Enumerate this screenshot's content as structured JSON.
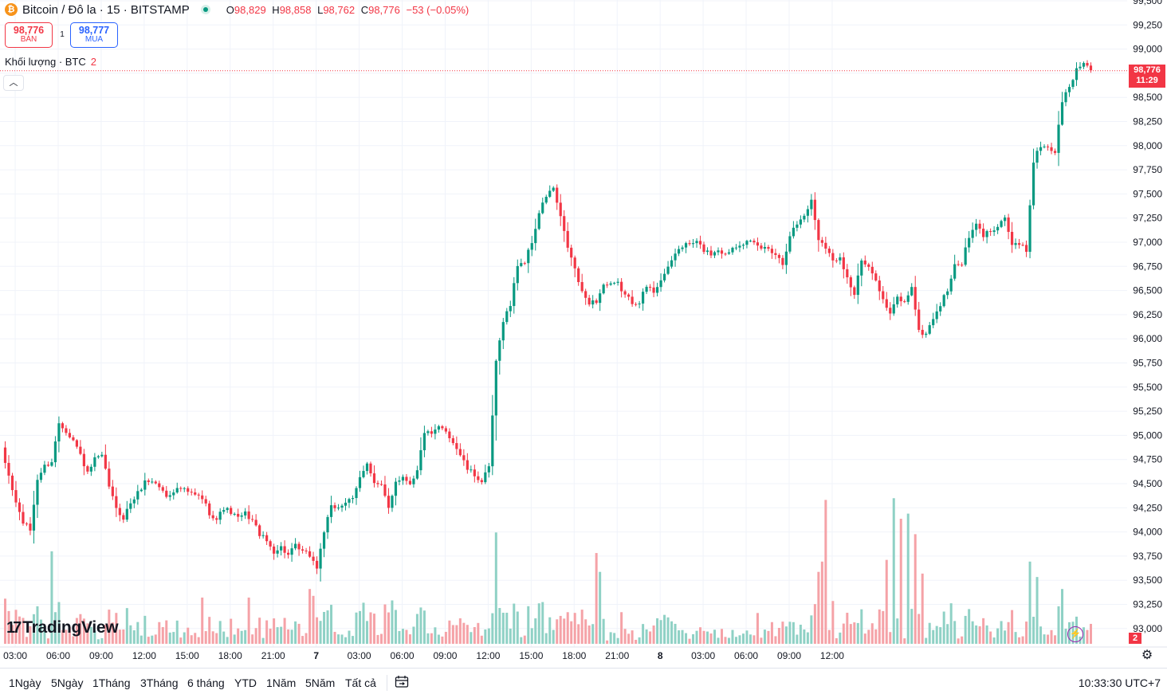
{
  "header": {
    "symbol_title": "Bitcoin / Đô la · 15 · BITSTAMP",
    "coin_icon": "bitcoin-icon",
    "ohlc": [
      {
        "key": "O",
        "value": "98,829"
      },
      {
        "key": "H",
        "value": "98,858"
      },
      {
        "key": "L",
        "value": "98,762"
      },
      {
        "key": "C",
        "value": "98,776"
      }
    ],
    "change": "−53 (−0.05%)"
  },
  "trade": {
    "sell_price": "98,776",
    "sell_label": "BÁN",
    "buy_price": "98,777",
    "buy_label": "MUA",
    "spread": "1"
  },
  "volume_legend": {
    "label": "Khối lượng · BTC",
    "value": "2"
  },
  "price_tag": {
    "price": "98,776",
    "countdown": "11:29"
  },
  "volume_tag": "2",
  "watermark": "TradingView",
  "colors": {
    "up": "#089981",
    "down": "#f23645",
    "vol_up": "#8fd1c5",
    "vol_down": "#f5a2a7",
    "grid": "#f0f3fa"
  },
  "chart_data": {
    "type": "candlestick",
    "symbol": "Bitcoin / Đô la",
    "interval": "15",
    "exchange": "BITSTAMP",
    "y_ticks": [
      93000,
      93250,
      93500,
      93750,
      94000,
      94250,
      94500,
      94750,
      95000,
      95250,
      95500,
      95750,
      96000,
      96250,
      96500,
      96750,
      97000,
      97250,
      97500,
      97750,
      98000,
      98250,
      98500,
      98750,
      99000,
      99250,
      99500
    ],
    "x_ticks": [
      "03:00",
      "06:00",
      "09:00",
      "12:00",
      "15:00",
      "18:00",
      "21:00",
      "7",
      "03:00",
      "06:00",
      "09:00",
      "12:00",
      "15:00",
      "18:00",
      "21:00",
      "8",
      "03:00",
      "06:00",
      "09:00",
      "12:00"
    ],
    "ylim": [
      92850,
      99550
    ],
    "grid": true,
    "last_price": 98776,
    "anchors": [
      [
        0,
        94850
      ],
      [
        2,
        94580
      ],
      [
        4,
        94300
      ],
      [
        6,
        94100
      ],
      [
        8,
        94020
      ],
      [
        10,
        94550
      ],
      [
        12,
        94680
      ],
      [
        14,
        94730
      ],
      [
        16,
        95130
      ],
      [
        18,
        95050
      ],
      [
        20,
        94950
      ],
      [
        22,
        94800
      ],
      [
        24,
        94600
      ],
      [
        26,
        94750
      ],
      [
        28,
        94780
      ],
      [
        30,
        94480
      ],
      [
        32,
        94230
      ],
      [
        34,
        94150
      ],
      [
        36,
        94300
      ],
      [
        38,
        94400
      ],
      [
        40,
        94520
      ],
      [
        42,
        94530
      ],
      [
        44,
        94470
      ],
      [
        46,
        94370
      ],
      [
        48,
        94430
      ],
      [
        50,
        94450
      ],
      [
        52,
        94410
      ],
      [
        54,
        94380
      ],
      [
        56,
        94350
      ],
      [
        58,
        94200
      ],
      [
        60,
        94130
      ],
      [
        62,
        94250
      ],
      [
        64,
        94200
      ],
      [
        66,
        94140
      ],
      [
        68,
        94190
      ],
      [
        70,
        94120
      ],
      [
        72,
        93980
      ],
      [
        74,
        93900
      ],
      [
        76,
        93800
      ],
      [
        78,
        93840
      ],
      [
        80,
        93760
      ],
      [
        82,
        93850
      ],
      [
        84,
        93790
      ],
      [
        86,
        93760
      ],
      [
        88,
        93630
      ],
      [
        90,
        94010
      ],
      [
        92,
        94250
      ],
      [
        94,
        94260
      ],
      [
        96,
        94310
      ],
      [
        98,
        94330
      ],
      [
        100,
        94560
      ],
      [
        102,
        94730
      ],
      [
        104,
        94500
      ],
      [
        106,
        94470
      ],
      [
        108,
        94250
      ],
      [
        110,
        94530
      ],
      [
        112,
        94570
      ],
      [
        114,
        94510
      ],
      [
        116,
        94630
      ],
      [
        118,
        95040
      ],
      [
        120,
        95000
      ],
      [
        122,
        95080
      ],
      [
        124,
        95050
      ],
      [
        126,
        94930
      ],
      [
        128,
        94800
      ],
      [
        130,
        94650
      ],
      [
        132,
        94590
      ],
      [
        134,
        94520
      ],
      [
        136,
        94660
      ],
      [
        138,
        95750
      ],
      [
        140,
        96200
      ],
      [
        142,
        96350
      ],
      [
        144,
        96770
      ],
      [
        146,
        96800
      ],
      [
        148,
        97000
      ],
      [
        150,
        97300
      ],
      [
        152,
        97480
      ],
      [
        154,
        97560
      ],
      [
        156,
        97250
      ],
      [
        158,
        96950
      ],
      [
        160,
        96720
      ],
      [
        162,
        96470
      ],
      [
        164,
        96380
      ],
      [
        166,
        96390
      ],
      [
        168,
        96560
      ],
      [
        170,
        96550
      ],
      [
        172,
        96570
      ],
      [
        174,
        96450
      ],
      [
        176,
        96380
      ],
      [
        178,
        96390
      ],
      [
        180,
        96540
      ],
      [
        182,
        96490
      ],
      [
        184,
        96620
      ],
      [
        186,
        96720
      ],
      [
        188,
        96890
      ],
      [
        190,
        96960
      ],
      [
        192,
        96980
      ],
      [
        194,
        97000
      ],
      [
        196,
        96920
      ],
      [
        198,
        96880
      ],
      [
        200,
        96930
      ],
      [
        202,
        96870
      ],
      [
        204,
        96950
      ],
      [
        206,
        96990
      ],
      [
        208,
        97000
      ],
      [
        210,
        96980
      ],
      [
        212,
        96940
      ],
      [
        214,
        96940
      ],
      [
        216,
        96880
      ],
      [
        218,
        96780
      ],
      [
        220,
        97080
      ],
      [
        222,
        97190
      ],
      [
        224,
        97280
      ],
      [
        226,
        97430
      ],
      [
        228,
        97040
      ],
      [
        230,
        96960
      ],
      [
        232,
        96800
      ],
      [
        234,
        96860
      ],
      [
        236,
        96630
      ],
      [
        238,
        96460
      ],
      [
        240,
        96810
      ],
      [
        242,
        96720
      ],
      [
        244,
        96630
      ],
      [
        246,
        96400
      ],
      [
        248,
        96250
      ],
      [
        250,
        96430
      ],
      [
        252,
        96370
      ],
      [
        254,
        96550
      ],
      [
        256,
        96070
      ],
      [
        258,
        96050
      ],
      [
        260,
        96220
      ],
      [
        262,
        96350
      ],
      [
        264,
        96510
      ],
      [
        266,
        96750
      ],
      [
        268,
        96790
      ],
      [
        270,
        97050
      ],
      [
        272,
        97180
      ],
      [
        274,
        97070
      ],
      [
        276,
        97120
      ],
      [
        278,
        97180
      ],
      [
        280,
        97260
      ],
      [
        282,
        96970
      ],
      [
        284,
        96970
      ],
      [
        286,
        96920
      ],
      [
        288,
        97850
      ],
      [
        290,
        98000
      ],
      [
        292,
        97990
      ],
      [
        294,
        97930
      ],
      [
        296,
        98470
      ],
      [
        298,
        98600
      ],
      [
        300,
        98790
      ],
      [
        302,
        98860
      ],
      [
        304,
        98780
      ]
    ],
    "volume_scale_btc": 2,
    "volume_spikes": [
      [
        14,
        0.54
      ],
      [
        56,
        0.27
      ],
      [
        69,
        0.27
      ],
      [
        86,
        0.32
      ],
      [
        87,
        0.28
      ],
      [
        101,
        0.24
      ],
      [
        107,
        0.23
      ],
      [
        138,
        0.65
      ],
      [
        166,
        0.53
      ],
      [
        167,
        0.42
      ],
      [
        211,
        0.18
      ],
      [
        228,
        0.42
      ],
      [
        229,
        0.48
      ],
      [
        230,
        0.84
      ],
      [
        232,
        0.25
      ],
      [
        247,
        0.49
      ],
      [
        249,
        0.85
      ],
      [
        251,
        0.73
      ],
      [
        253,
        0.76
      ],
      [
        255,
        0.64
      ],
      [
        257,
        0.41
      ],
      [
        287,
        0.48
      ],
      [
        289,
        0.39
      ],
      [
        296,
        0.32
      ]
    ]
  },
  "bottom_bar": {
    "ranges": [
      "1Ngày",
      "5Ngày",
      "1Tháng",
      "3Tháng",
      "6 tháng",
      "YTD",
      "1Năm",
      "5Năm",
      "Tất cả"
    ],
    "calendar_icon": "calendar-range-icon",
    "clock": "10:33:30 UTC+7"
  }
}
